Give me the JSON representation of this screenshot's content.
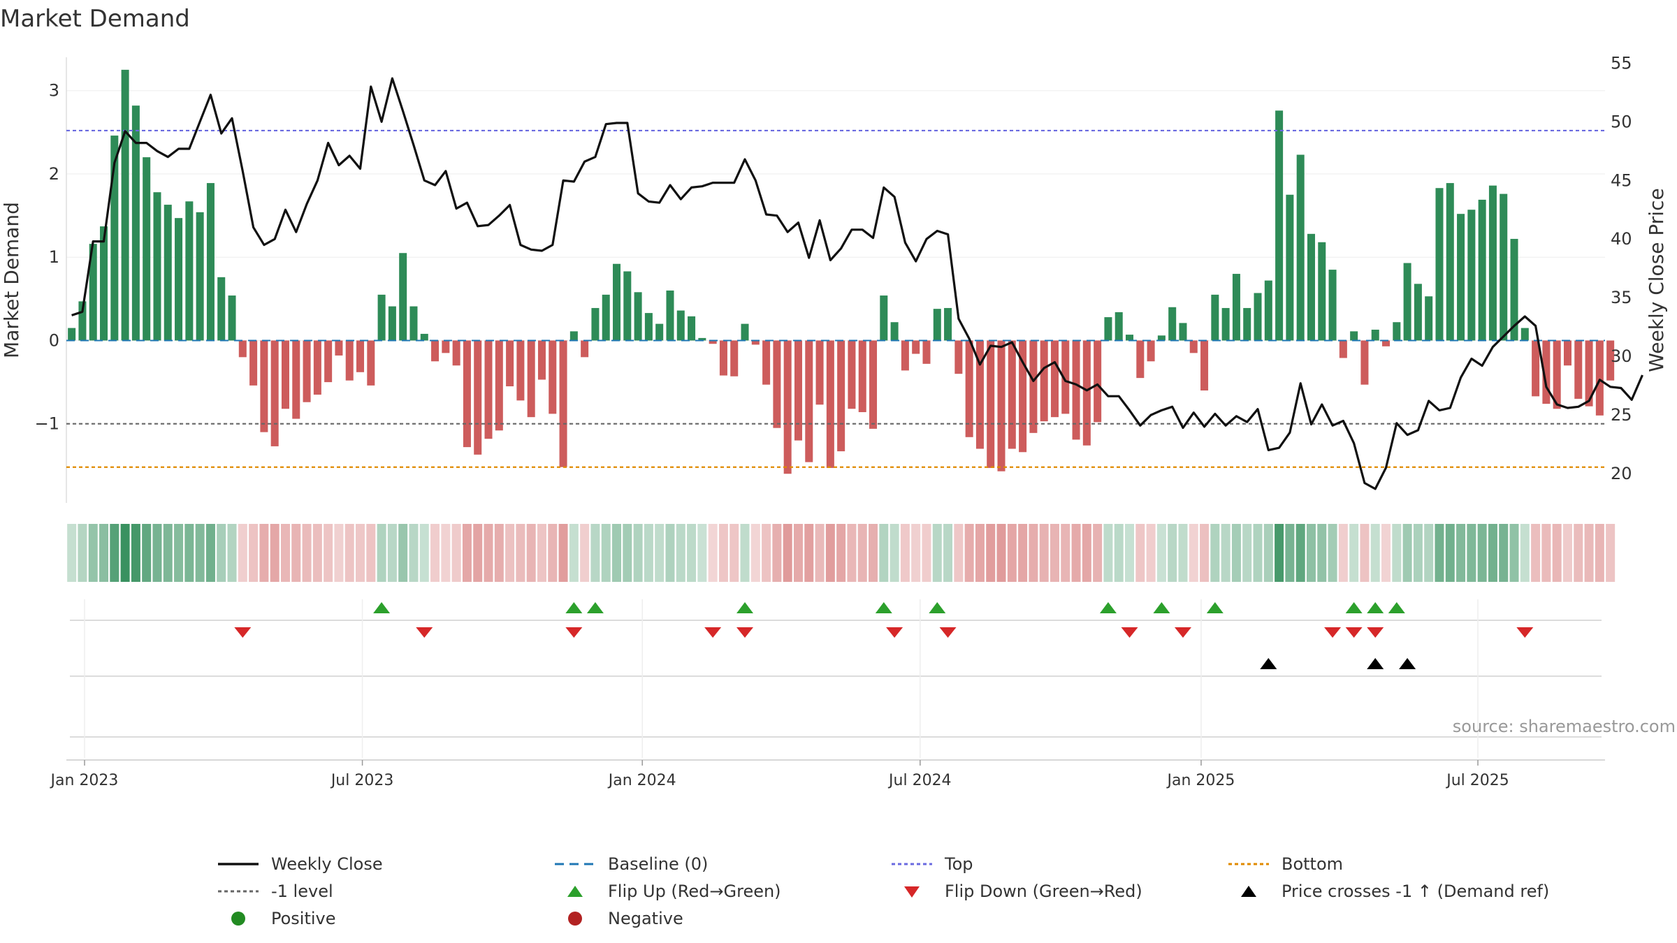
{
  "title": "Market Demand",
  "source": "source: sharemaestro.com",
  "colors": {
    "positive": "#2e8b57",
    "negative": "#cd5c5c",
    "price": "#111111",
    "baseline": "#1f77b4",
    "top": "#6a6ae0",
    "minus1": "#666666",
    "bottom": "#e08a00",
    "flip_up": "#2ca02c",
    "flip_down": "#d62728",
    "cross": "#000000"
  },
  "chart_data": {
    "type": "bar+line",
    "title": "Market Demand",
    "ylabel_left": "Market Demand",
    "ylabel_right": "Weekly Close Price",
    "ylim_left": [
      -1.95,
      3.4
    ],
    "ylim_right": [
      17.5,
      55.5
    ],
    "yticks_left": [
      {
        "v": -1,
        "label": "−1"
      },
      {
        "v": 0,
        "label": "0"
      },
      {
        "v": 1,
        "label": "1"
      },
      {
        "v": 2,
        "label": "2"
      },
      {
        "v": 3,
        "label": "3"
      }
    ],
    "yticks_right": [
      20,
      25,
      30,
      35,
      40,
      45,
      50,
      55
    ],
    "x_ticks": [
      {
        "week": 1.2,
        "label": "Jan 2023"
      },
      {
        "week": 27.2,
        "label": "Jul 2023"
      },
      {
        "week": 53.4,
        "label": "Jan 2024"
      },
      {
        "week": 79.4,
        "label": "Jul 2024"
      },
      {
        "week": 105.7,
        "label": "Jan 2025"
      },
      {
        "week": 131.6,
        "label": "Jul 2025"
      }
    ],
    "x_range": [
      -0.5,
      143.5
    ],
    "reference_lines": {
      "baseline": 0,
      "top": 2.52,
      "minus1": -1.0,
      "bottom": -1.52
    },
    "demand": [
      0.15,
      0.47,
      1.16,
      1.37,
      2.46,
      3.25,
      2.82,
      2.2,
      1.78,
      1.63,
      1.47,
      1.67,
      1.54,
      1.89,
      0.76,
      0.54,
      -0.2,
      -0.54,
      -1.1,
      -1.27,
      -0.82,
      -0.94,
      -0.74,
      -0.65,
      -0.5,
      -0.18,
      -0.48,
      -0.38,
      -0.54,
      0.55,
      0.41,
      1.05,
      0.41,
      0.08,
      -0.25,
      -0.15,
      -0.3,
      -1.28,
      -1.37,
      -1.18,
      -1.08,
      -0.55,
      -0.72,
      -0.92,
      -0.47,
      -0.88,
      -1.52,
      0.11,
      -0.2,
      0.39,
      0.55,
      0.92,
      0.83,
      0.58,
      0.33,
      0.2,
      0.6,
      0.36,
      0.29,
      0.03,
      -0.04,
      -0.42,
      -0.43,
      0.2,
      -0.05,
      -0.53,
      -1.05,
      -1.6,
      -1.2,
      -1.46,
      -0.77,
      -1.53,
      -1.33,
      -0.82,
      -0.86,
      -1.06,
      0.54,
      0.22,
      -0.36,
      -0.16,
      -0.28,
      0.38,
      0.39,
      -0.4,
      -1.16,
      -1.3,
      -1.53,
      -1.57,
      -1.3,
      -1.34,
      -1.11,
      -0.97,
      -0.92,
      -0.88,
      -1.19,
      -1.26,
      -0.98,
      0.28,
      0.34,
      0.07,
      -0.45,
      -0.25,
      0.06,
      0.4,
      0.21,
      -0.15,
      -0.6,
      0.55,
      0.39,
      0.8,
      0.39,
      0.57,
      0.72,
      2.76,
      1.75,
      2.23,
      1.28,
      1.18,
      0.85,
      -0.21,
      0.11,
      -0.53,
      0.13,
      -0.07,
      0.22,
      0.93,
      0.68,
      0.53,
      1.83,
      1.89,
      1.52,
      1.57,
      1.69,
      1.86,
      1.76,
      1.22,
      0.15,
      -0.67,
      -0.76,
      -0.82,
      -0.3,
      -0.7,
      -0.79,
      -0.9,
      -0.48
    ],
    "close": [
      33.5,
      33.8,
      39.8,
      39.8,
      46.5,
      49.2,
      48.2,
      48.2,
      47.5,
      47,
      47.7,
      47.7,
      50,
      52.3,
      49,
      50.3,
      45.8,
      41,
      39.5,
      40,
      42.5,
      40.6,
      43,
      45,
      48.2,
      46.3,
      47.1,
      46,
      53,
      50,
      53.7,
      50.9,
      48,
      45,
      44.6,
      45.8,
      42.6,
      43.1,
      41.1,
      41.2,
      42,
      42.9,
      39.5,
      39.1,
      39,
      39.5,
      45,
      44.9,
      46.6,
      47,
      49.8,
      49.9,
      49.9,
      43.9,
      43.2,
      43.1,
      44.6,
      43.4,
      44.4,
      44.5,
      44.8,
      44.8,
      44.8,
      46.8,
      45,
      42.1,
      42,
      40.6,
      41.4,
      38.4,
      41.6,
      38.2,
      39.2,
      40.8,
      40.8,
      40.1,
      44.4,
      43.6,
      39.7,
      38.1,
      40,
      40.7,
      40.4,
      33.2,
      31.5,
      29.3,
      30.9,
      30.8,
      31.2,
      29.5,
      27.9,
      29,
      29.5,
      27.9,
      27.6,
      27.1,
      27.6,
      26.6,
      26.6,
      25.4,
      24.1,
      25,
      25.4,
      25.7,
      23.9,
      25.2,
      24,
      25.1,
      24.1,
      24.9,
      24.4,
      25.5,
      22,
      22.2,
      23.5,
      27.7,
      24.2,
      25.9,
      24.1,
      24.5,
      22.6,
      19.2,
      18.7,
      20.5,
      24.3,
      23.3,
      23.7,
      26.2,
      25.4,
      25.6,
      28.2,
      29.8,
      29.2,
      30.8,
      31.7,
      32.6,
      33.4,
      32.6,
      27.4,
      25.9,
      25.6,
      25.7,
      26.2,
      28,
      27.4,
      27.3,
      26.3,
      28.4
    ],
    "flip_up_weeks": [
      29,
      47,
      49,
      63,
      76,
      81,
      97,
      102,
      107,
      120,
      122,
      124
    ],
    "flip_down_weeks": [
      16,
      33,
      47,
      60,
      63,
      77,
      82,
      99,
      104,
      118,
      120,
      122,
      136
    ],
    "cross_weeks": [
      112,
      122,
      125
    ]
  },
  "legend": [
    {
      "key": "weekly_close",
      "label": "Weekly Close"
    },
    {
      "key": "baseline",
      "label": "Baseline (0)"
    },
    {
      "key": "top",
      "label": "Top"
    },
    {
      "key": "bottom",
      "label": "Bottom"
    },
    {
      "key": "minus1",
      "label": "-1 level"
    },
    {
      "key": "flip_up",
      "label": "Flip Up (Red→Green)"
    },
    {
      "key": "flip_down",
      "label": "Flip Down (Green→Red)"
    },
    {
      "key": "cross",
      "label": "Price crosses -1 ↑ (Demand ref)"
    },
    {
      "key": "positive",
      "label": "Positive"
    },
    {
      "key": "negative",
      "label": "Negative"
    }
  ]
}
